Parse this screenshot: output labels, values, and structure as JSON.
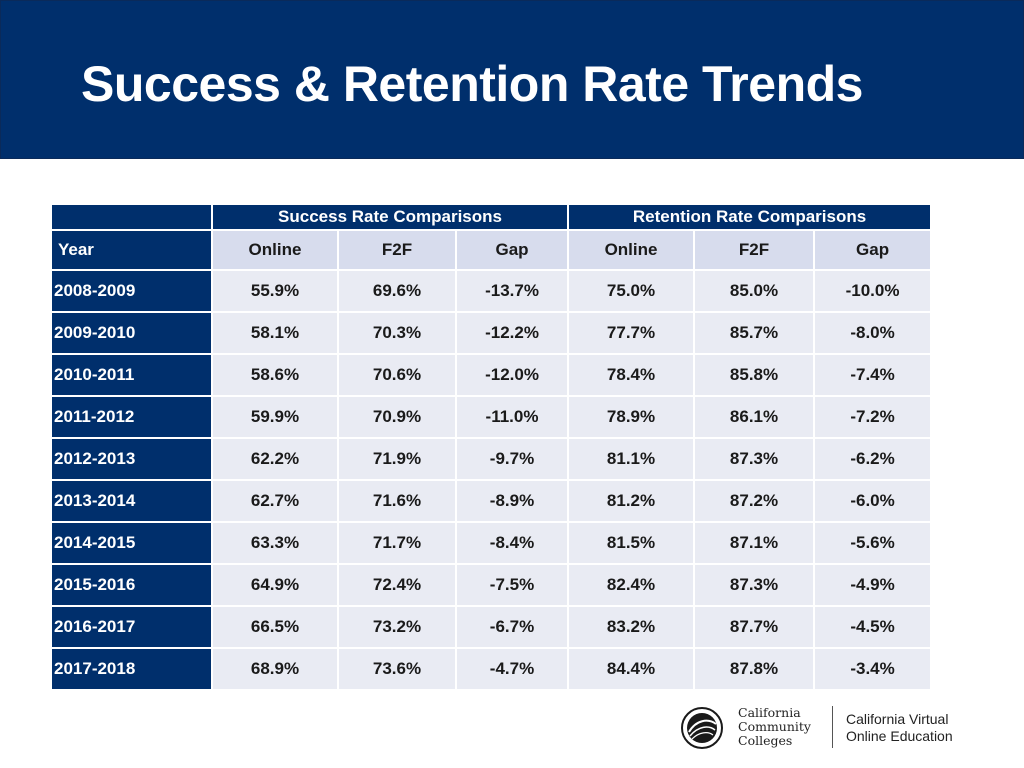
{
  "slide": {
    "title": "Success & Retention Rate Trends"
  },
  "table": {
    "groups": {
      "success": "Success Rate Comparisons",
      "retention": "Retention Rate Comparisons"
    },
    "columns": [
      "Year",
      "Online",
      "F2F",
      "Gap",
      "Online",
      "F2F",
      "Gap"
    ],
    "rows": [
      [
        "2008-2009",
        "55.9%",
        "69.6%",
        "-13.7%",
        "75.0%",
        "85.0%",
        "-10.0%"
      ],
      [
        "2009-2010",
        "58.1%",
        "70.3%",
        "-12.2%",
        "77.7%",
        "85.7%",
        "-8.0%"
      ],
      [
        "2010-2011",
        "58.6%",
        "70.6%",
        "-12.0%",
        "78.4%",
        "85.8%",
        "-7.4%"
      ],
      [
        "2011-2012",
        "59.9%",
        "70.9%",
        "-11.0%",
        "78.9%",
        "86.1%",
        "-7.2%"
      ],
      [
        "2012-2013",
        "62.2%",
        "71.9%",
        "-9.7%",
        "81.1%",
        "87.3%",
        "-6.2%"
      ],
      [
        "2013-2014",
        "62.7%",
        "71.6%",
        "-8.9%",
        "81.2%",
        "87.2%",
        "-6.0%"
      ],
      [
        "2014-2015",
        "63.3%",
        "71.7%",
        "-8.4%",
        "81.5%",
        "87.1%",
        "-5.6%"
      ],
      [
        "2015-2016",
        "64.9%",
        "72.4%",
        "-7.5%",
        "82.4%",
        "87.3%",
        "-4.9%"
      ],
      [
        "2016-2017",
        "66.5%",
        "73.2%",
        "-6.7%",
        "83.2%",
        "87.7%",
        "-4.5%"
      ],
      [
        "2017-2018",
        "68.9%",
        "73.6%",
        "-4.7%",
        "84.4%",
        "87.8%",
        "-3.4%"
      ]
    ]
  },
  "footer": {
    "ccc_logo": {
      "icon": "ccc-seal-icon",
      "lines": [
        "California",
        "Community",
        "Colleges"
      ]
    },
    "cvc_logo": {
      "lines": [
        "California Virtual",
        "Online Education"
      ]
    }
  },
  "colors": {
    "navy": "#002f6c",
    "header_cell": "#d7dced",
    "data_cell": "#e9ebf3"
  }
}
